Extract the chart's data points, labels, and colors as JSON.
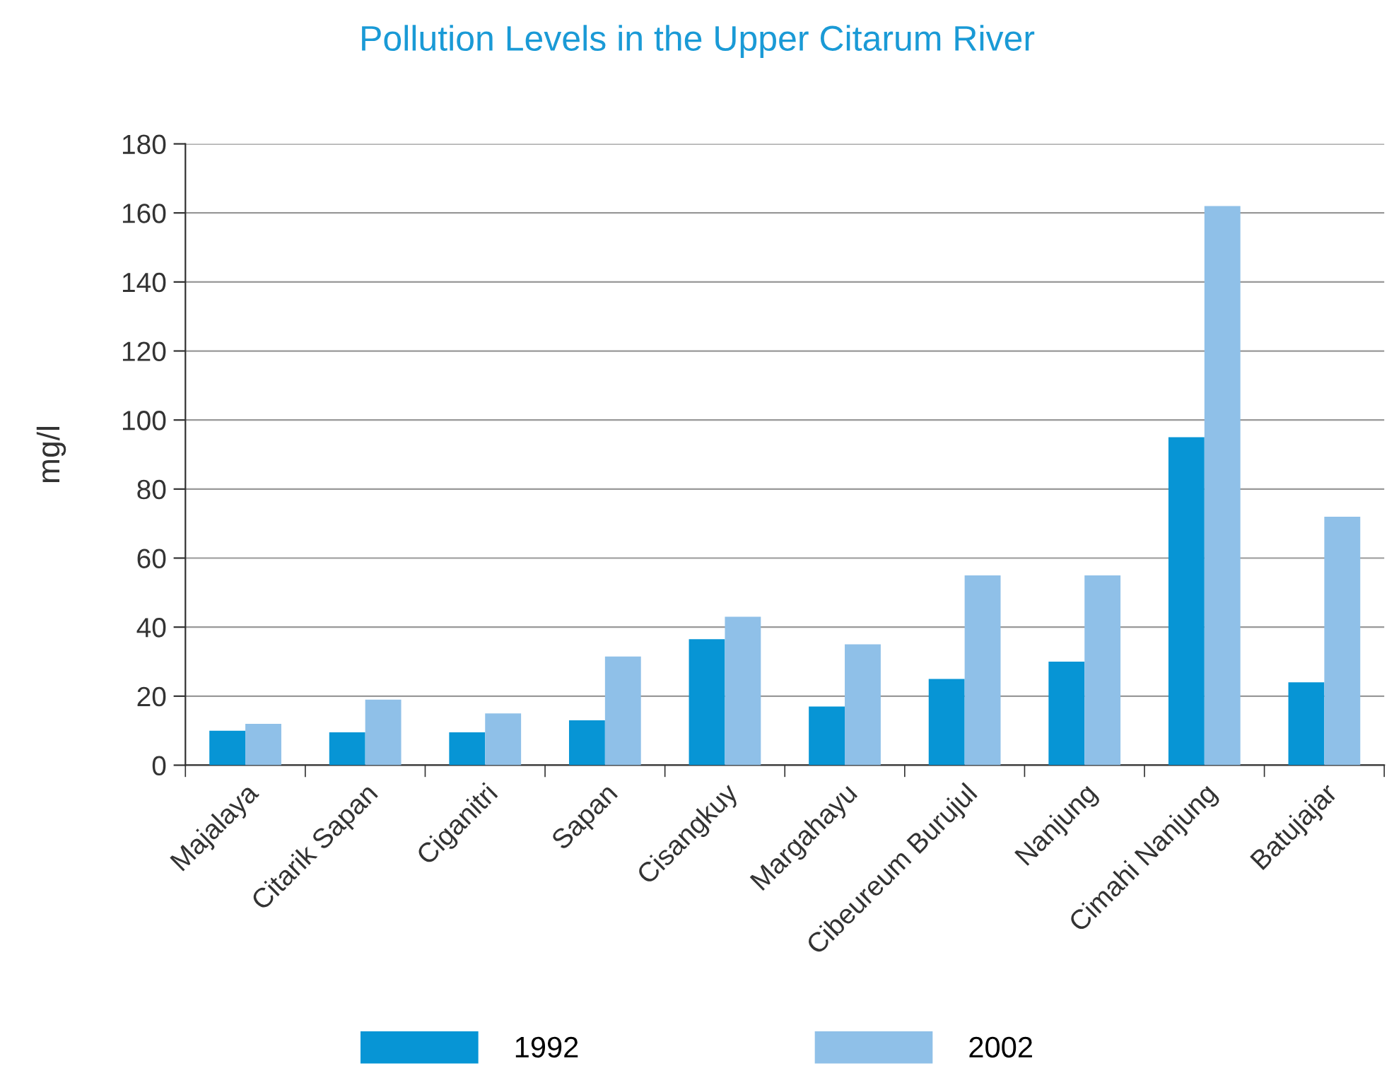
{
  "chart_data": {
    "type": "bar",
    "title": "Pollution Levels in the Upper Citarum River",
    "ylabel": "mg/l",
    "categories": [
      "Majalaya",
      "Citarik Sapan",
      "Ciganitri",
      "Sapan",
      "Cisangkuy",
      "Margahayu",
      "Cibeureum Burujul",
      "Nanjung",
      "Cimahi Nanjung",
      "Batujajar"
    ],
    "series": [
      {
        "name": "1992",
        "color": "#0795d5",
        "values": [
          10,
          9.5,
          9.5,
          13,
          36.5,
          17,
          25,
          30,
          95,
          24
        ]
      },
      {
        "name": "2002",
        "color": "#8fc0e8",
        "values": [
          12,
          19,
          15,
          31.5,
          43,
          35,
          55,
          55,
          162,
          72
        ]
      }
    ],
    "ylim": [
      0,
      180
    ],
    "yticks": [
      0,
      20,
      40,
      60,
      80,
      100,
      120,
      140,
      160,
      180
    ],
    "grid": "y",
    "legend": "bottom"
  }
}
